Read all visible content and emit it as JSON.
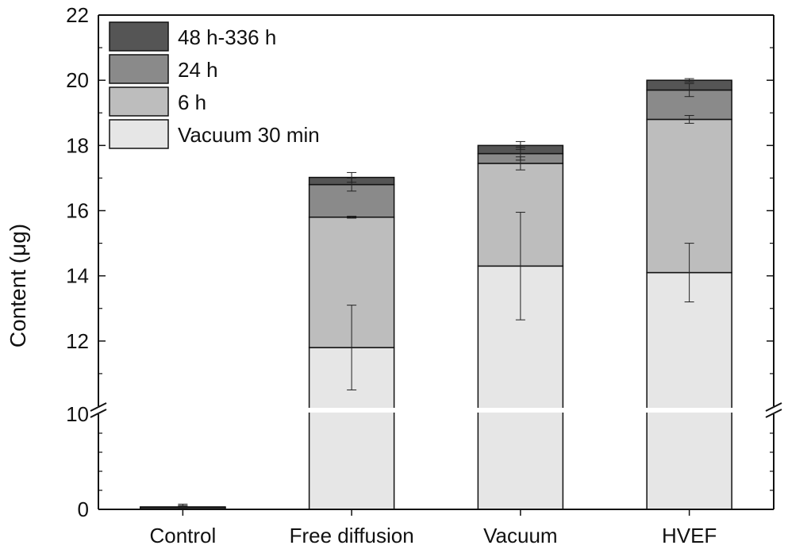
{
  "chart_data": {
    "type": "bar",
    "stacked": true,
    "broken_y_axis": true,
    "categories": [
      "Control",
      "Free diffusion",
      "Vacuum",
      "HVEF"
    ],
    "ylabel": "Content (μg)",
    "xlabel": "",
    "y_lower_segment": [
      0,
      10
    ],
    "y_upper_segment": [
      10,
      22
    ],
    "y_ticks_lower": [
      0,
      10
    ],
    "y_ticks_upper": [
      10,
      12,
      14,
      16,
      18,
      20,
      22
    ],
    "series": [
      {
        "name": "Vacuum 30 min",
        "color": "#e6e6e6",
        "values": [
          0.2,
          11.8,
          14.3,
          14.1
        ],
        "errors": [
          0.35,
          1.3,
          1.65,
          0.9
        ]
      },
      {
        "name": "6 h",
        "color": "#bdbdbd",
        "values": [
          0.0,
          4.0,
          3.15,
          4.7
        ],
        "errors": [
          0.2,
          0.03,
          0.2,
          0.12
        ]
      },
      {
        "name": "24 h",
        "color": "#8a8a8a",
        "values": [
          0.03,
          1.0,
          0.3,
          0.9
        ],
        "errors": [
          0.15,
          0.2,
          0.2,
          0.2
        ]
      },
      {
        "name": "48 h-336 h",
        "color": "#555555",
        "values": [
          0.03,
          0.22,
          0.25,
          0.3
        ],
        "errors": [
          0.1,
          0.15,
          0.12,
          0.05
        ]
      }
    ],
    "legend_order": [
      "48 h-336 h",
      "24 h",
      "6 h",
      "Vacuum 30 min"
    ],
    "legend_position": "top-left",
    "grid": false
  }
}
